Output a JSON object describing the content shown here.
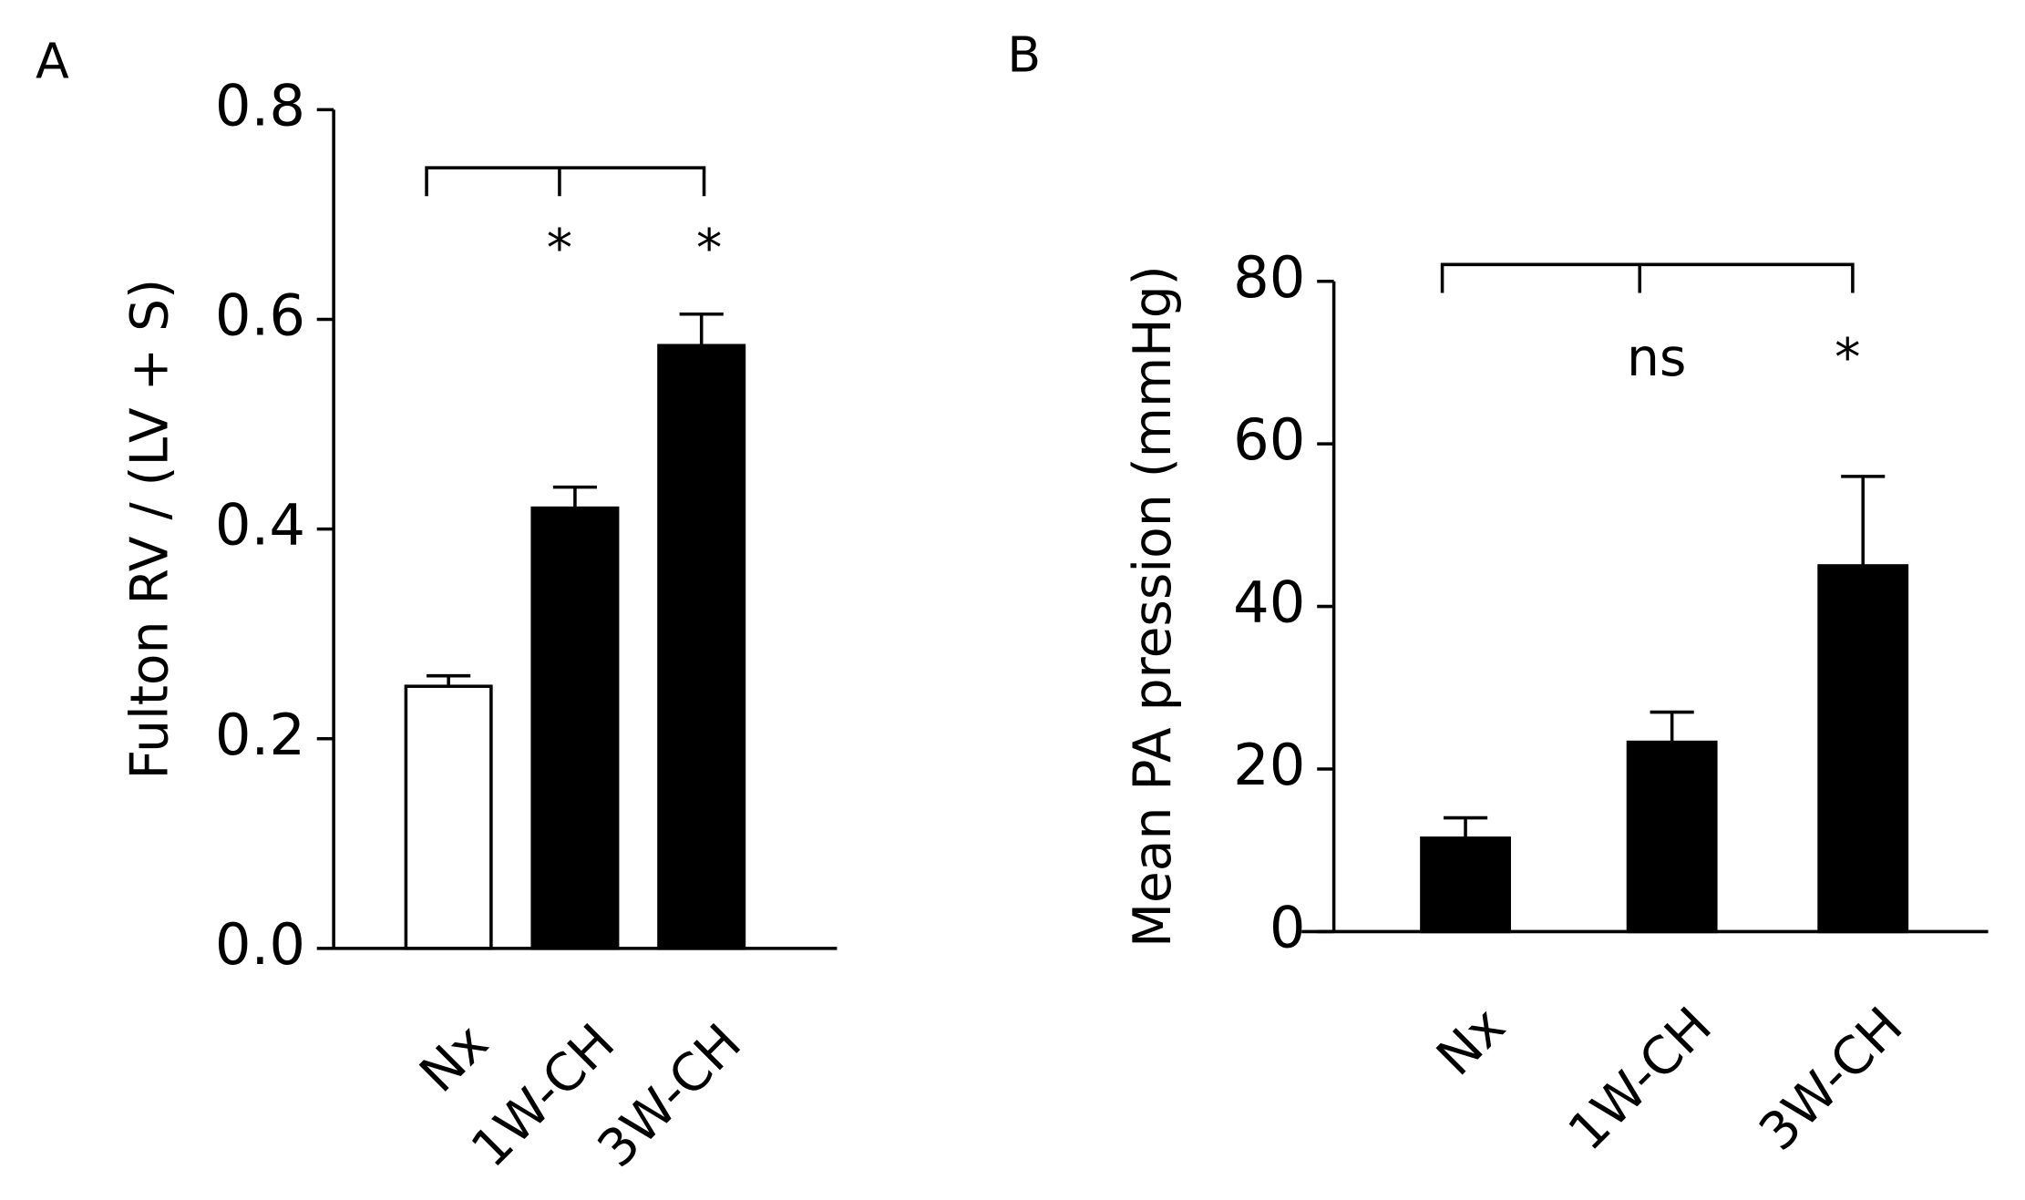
{
  "chart_data": [
    {
      "type": "bar",
      "panel_label": "A",
      "ylabel": "Fulton RV / (LV + S)",
      "categories": [
        "Nx",
        "1W-CH",
        "3W-CH"
      ],
      "values": [
        0.25,
        0.42,
        0.575
      ],
      "errors": [
        0.01,
        0.02,
        0.03
      ],
      "colors": [
        "#ffffff",
        "#000000",
        "#000000"
      ],
      "significance": [
        null,
        "*",
        "*"
      ],
      "ylim": [
        0,
        0.8
      ],
      "yticks": [
        {
          "value": 0,
          "label": "0.0"
        },
        0.2,
        0.4,
        0.6,
        0.8
      ]
    },
    {
      "type": "bar",
      "panel_label": "B",
      "ylabel": "Mean PA pression (mmHg)",
      "categories": [
        "Nx",
        "1W-CH",
        "3W-CH"
      ],
      "values": [
        11.5,
        23.3,
        45
      ],
      "errors": [
        2.5,
        3.7,
        11
      ],
      "colors": [
        "#000000",
        "#000000",
        "#000000"
      ],
      "significance": [
        null,
        "ns",
        "*"
      ],
      "ylim": [
        0,
        80
      ],
      "yticks": [
        0,
        20,
        40,
        60,
        80
      ]
    }
  ]
}
